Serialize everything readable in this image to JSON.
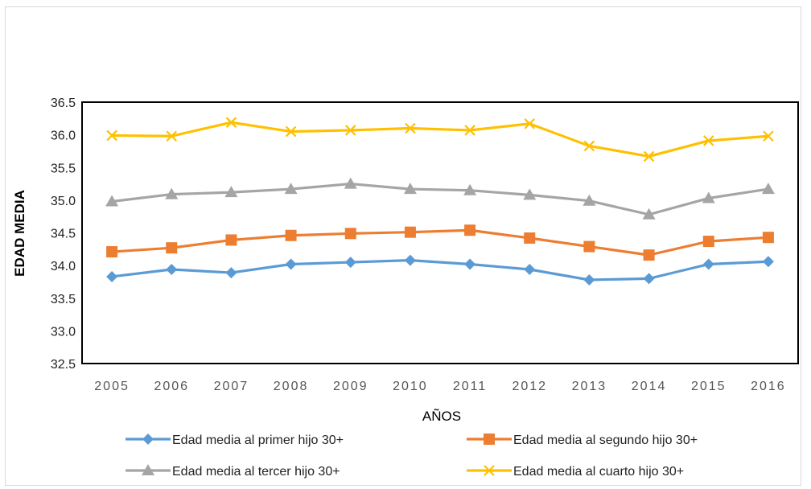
{
  "chart_data": {
    "type": "line",
    "title": "",
    "xlabel": "AÑOS",
    "ylabel": "EDAD MEDIA",
    "ylim": [
      32.5,
      36.5
    ],
    "yticks": [
      "32.5",
      "33.0",
      "33.5",
      "34.0",
      "34.5",
      "35.0",
      "35.5",
      "36.0",
      "36.5"
    ],
    "x": [
      "2005",
      "2006",
      "2007",
      "2008",
      "2009",
      "2010",
      "2011",
      "2012",
      "2013",
      "2014",
      "2015",
      "2016"
    ],
    "grid": false,
    "legend_position": "bottom",
    "series": [
      {
        "name": "Edad media al primer hijo 30+",
        "color": "#5b9bd5",
        "marker": "diamond",
        "values": [
          33.83,
          33.94,
          33.89,
          34.02,
          34.05,
          34.08,
          34.02,
          33.94,
          33.78,
          33.8,
          34.02,
          34.06
        ]
      },
      {
        "name": "Edad media al segundo hijo 30+",
        "color": "#ed7d31",
        "marker": "square",
        "values": [
          34.21,
          34.27,
          34.39,
          34.46,
          34.49,
          34.51,
          34.54,
          34.42,
          34.29,
          34.16,
          34.37,
          34.43
        ]
      },
      {
        "name": "Edad media al tercer hijo 30+",
        "color": "#a5a5a5",
        "marker": "triangle",
        "values": [
          34.98,
          35.09,
          35.12,
          35.17,
          35.25,
          35.17,
          35.15,
          35.08,
          34.99,
          34.78,
          35.03,
          35.17
        ]
      },
      {
        "name": "Edad media al cuarto hijo 30+",
        "color": "#ffc000",
        "marker": "x",
        "values": [
          35.99,
          35.98,
          36.19,
          36.05,
          36.07,
          36.1,
          36.07,
          36.17,
          35.83,
          35.67,
          35.91,
          35.98
        ]
      }
    ]
  }
}
